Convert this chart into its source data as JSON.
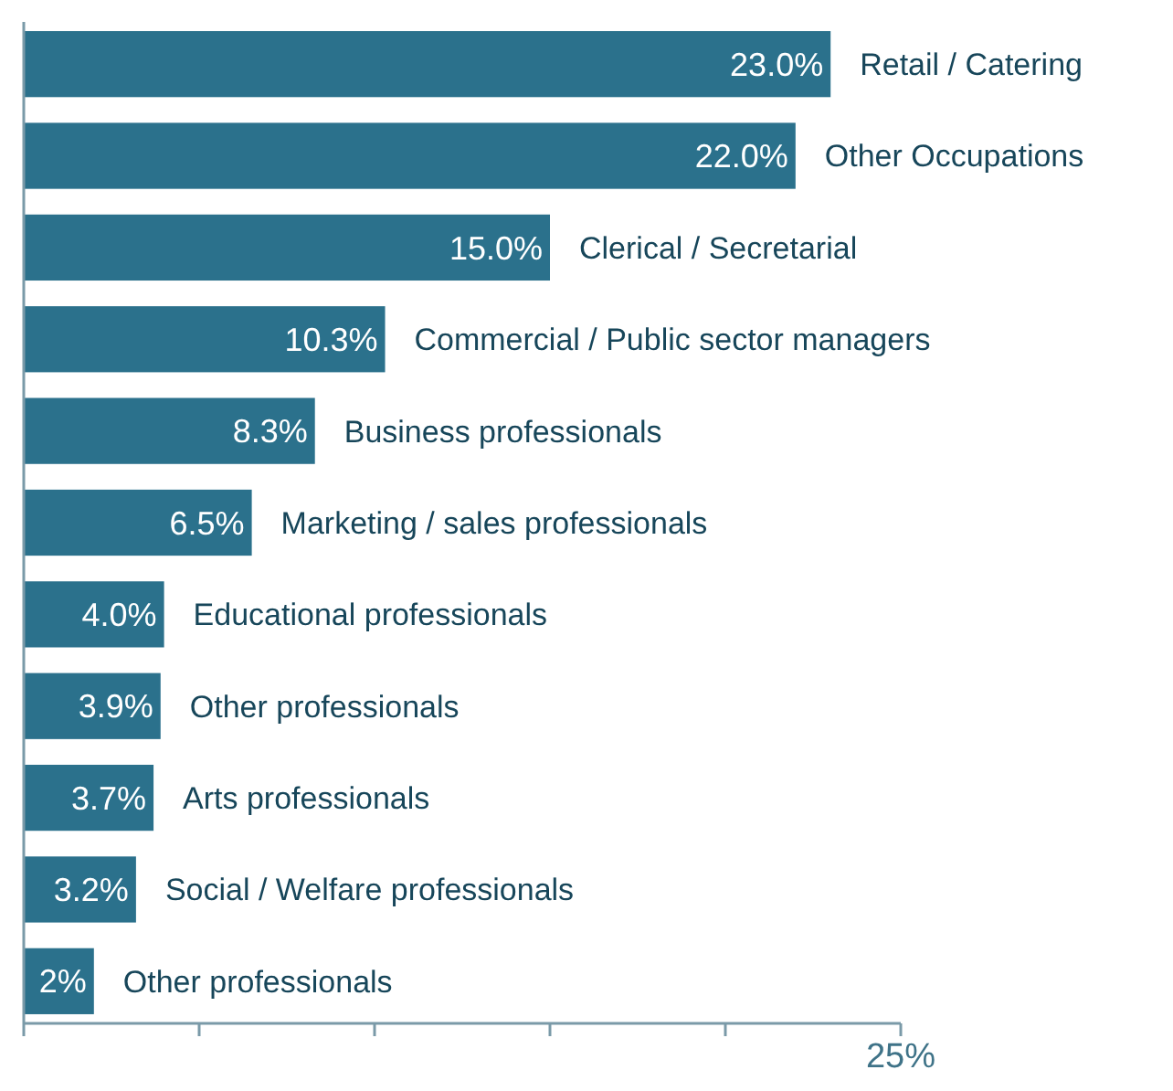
{
  "chart_data": {
    "type": "bar",
    "orientation": "horizontal",
    "categories": [
      "Retail / Catering",
      "Other Occupations",
      "Clerical / Secretarial",
      "Commercial / Public sector managers",
      "Business professionals",
      "Marketing / sales professionals",
      "Educational professionals",
      "Other professionals",
      "Arts professionals",
      "Social / Welfare professionals",
      "Other professionals"
    ],
    "values": [
      23.0,
      22.0,
      15.0,
      10.3,
      8.3,
      6.5,
      4.0,
      3.9,
      3.7,
      3.2,
      2
    ],
    "value_labels": [
      "23.0%",
      "22.0%",
      "15.0%",
      "10.3%",
      "8.3%",
      "6.5%",
      "4.0%",
      "3.9%",
      "3.7%",
      "3.2%",
      "2%"
    ],
    "color": "#2b718c",
    "xlim": [
      0,
      25
    ],
    "xticks": [
      {
        "value": 0,
        "label": null
      },
      {
        "value": 5,
        "label": null
      },
      {
        "value": 10,
        "label": null
      },
      {
        "value": 15,
        "label": null
      },
      {
        "value": 20,
        "label": null
      },
      {
        "value": 25,
        "label": "25%"
      }
    ],
    "grid": false
  }
}
